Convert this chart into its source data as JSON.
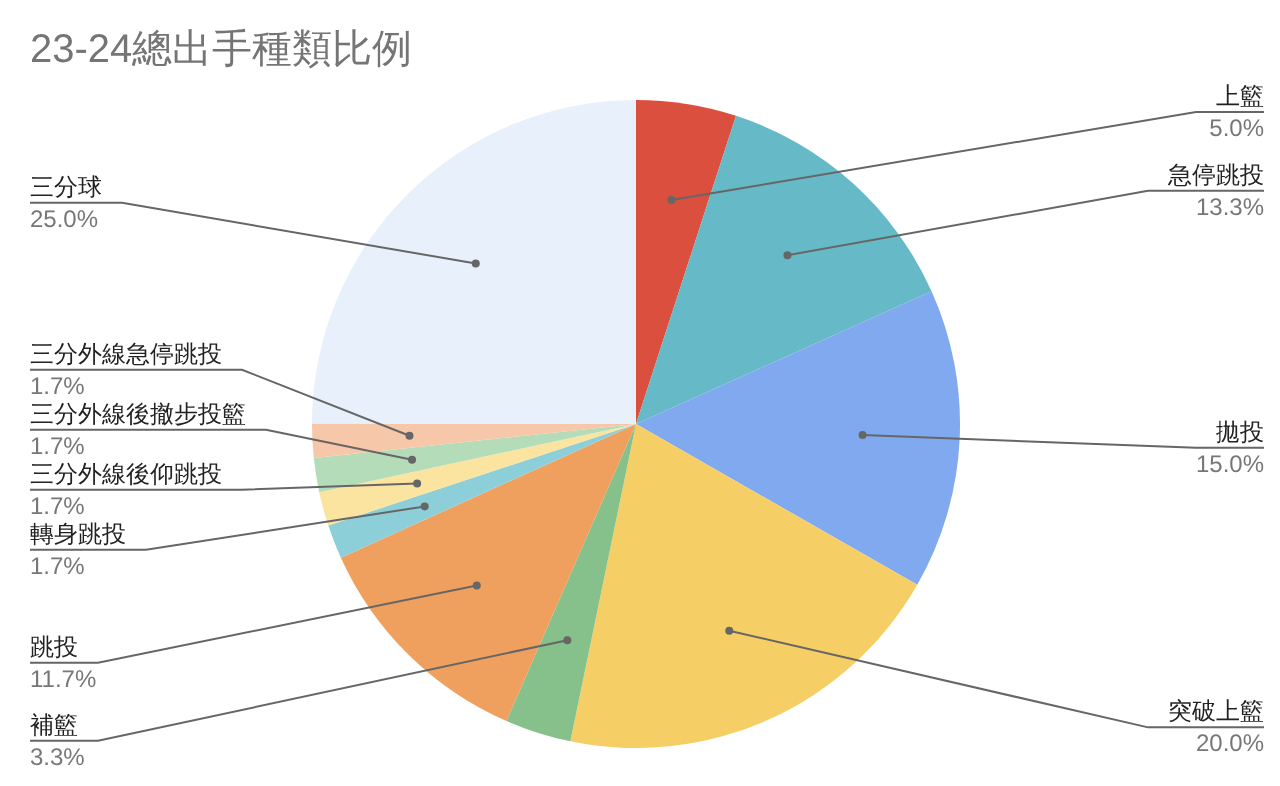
{
  "chart_data": {
    "type": "pie",
    "title": "23-24總出手種類比例",
    "categories": [
      "上籃",
      "急停跳投",
      "拋投",
      "突破上籃",
      "補籃",
      "跳投",
      "轉身跳投",
      "三分外線後仰跳投",
      "三分外線後撤步投籃",
      "三分外線急停跳投",
      "三分球"
    ],
    "values": [
      5.0,
      13.3,
      15.0,
      20.0,
      3.3,
      11.7,
      1.7,
      1.7,
      1.7,
      1.7,
      25.0
    ],
    "value_labels": [
      "5.0%",
      "13.3%",
      "15.0%",
      "20.0%",
      "3.3%",
      "11.7%",
      "1.7%",
      "1.7%",
      "1.7%",
      "1.7%",
      "25.0%"
    ],
    "colors": [
      "#db4f3f",
      "#66b9c6",
      "#80a9ef",
      "#f5cf66",
      "#86c08a",
      "#f0a05e",
      "#8ccfd9",
      "#fbe3a0",
      "#b5dcb8",
      "#f6c7a8",
      "#e8f0fc"
    ]
  }
}
